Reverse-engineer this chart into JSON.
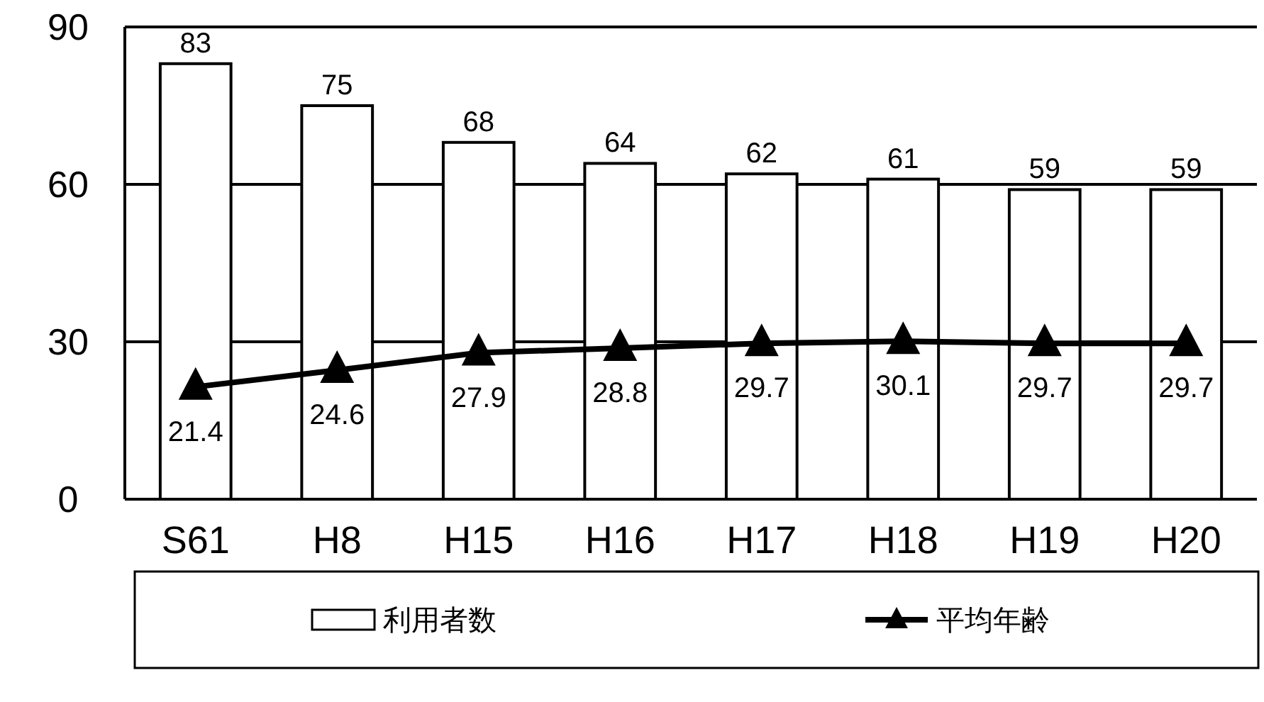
{
  "chart_data": {
    "type": "bar",
    "categories": [
      "S61",
      "H8",
      "H15",
      "H16",
      "H17",
      "H18",
      "H19",
      "H20"
    ],
    "series": [
      {
        "name": "利用者数",
        "color": "#ffffff",
        "values": [
          83,
          75,
          68,
          64,
          62,
          61,
          59,
          59
        ]
      },
      {
        "name": "平均年齢",
        "type": "line",
        "color": "#000000",
        "values": [
          21.4,
          24.6,
          27.9,
          28.8,
          29.7,
          30.1,
          29.7,
          29.7
        ]
      }
    ],
    "ylim": [
      0,
      90
    ],
    "yticks": [
      0,
      30,
      60,
      90
    ],
    "grid": "y",
    "legend": "bottom",
    "marker": "triangle",
    "data_labels": true
  }
}
